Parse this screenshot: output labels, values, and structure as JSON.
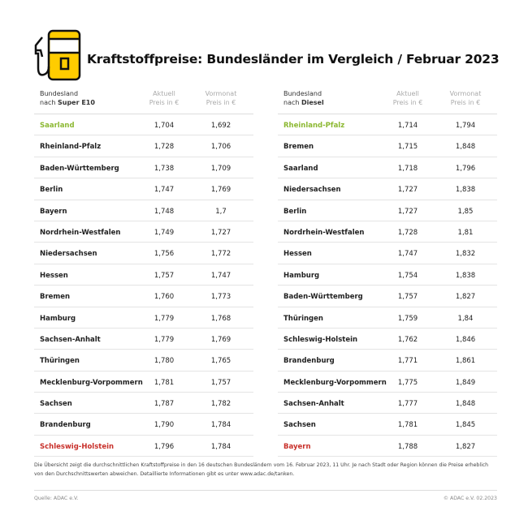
{
  "title": "Kraftstoffpreise: Bundesländer im Vergleich / Februar 2023",
  "logo_icon": "fuel-pump-icon",
  "colors": {
    "accent": "#ffcc00",
    "best": "#8cb832",
    "worst": "#c8302a"
  },
  "tables": [
    {
      "header": {
        "name_line1": "Bundesland",
        "name_prefix": "nach ",
        "fuel": "Super E10",
        "current_line1": "Aktuell",
        "current_line2": "Preis in €",
        "prev_line1": "Vormonat",
        "prev_line2": "Preis in €"
      },
      "rows": [
        {
          "state": "Saarland",
          "current": "1,704",
          "previous": "1,692",
          "highlight": "best"
        },
        {
          "state": "Rheinland-Pfalz",
          "current": "1,728",
          "previous": "1,706"
        },
        {
          "state": "Baden-Württemberg",
          "current": "1,738",
          "previous": "1,709"
        },
        {
          "state": "Berlin",
          "current": "1,747",
          "previous": "1,769"
        },
        {
          "state": "Bayern",
          "current": "1,748",
          "previous": "1,7"
        },
        {
          "state": "Nordrhein-Westfalen",
          "current": "1,749",
          "previous": "1,727"
        },
        {
          "state": "Niedersachsen",
          "current": "1,756",
          "previous": "1,772"
        },
        {
          "state": "Hessen",
          "current": "1,757",
          "previous": "1,747"
        },
        {
          "state": "Bremen",
          "current": "1,760",
          "previous": "1,773"
        },
        {
          "state": "Hamburg",
          "current": "1,779",
          "previous": "1,768"
        },
        {
          "state": "Sachsen-Anhalt",
          "current": "1,779",
          "previous": "1,769"
        },
        {
          "state": "Thüringen",
          "current": "1,780",
          "previous": "1,765"
        },
        {
          "state": "Mecklenburg-Vorpommern",
          "current": "1,781",
          "previous": "1,757"
        },
        {
          "state": "Sachsen",
          "current": "1,787",
          "previous": "1,782"
        },
        {
          "state": "Brandenburg",
          "current": "1,790",
          "previous": "1,784"
        },
        {
          "state": "Schleswig-Holstein",
          "current": "1,796",
          "previous": "1,784",
          "highlight": "worst"
        }
      ]
    },
    {
      "header": {
        "name_line1": "Bundesland",
        "name_prefix": "nach ",
        "fuel": "Diesel",
        "current_line1": "Aktuell",
        "current_line2": "Preis in €",
        "prev_line1": "Vormonat",
        "prev_line2": "Preis in €"
      },
      "rows": [
        {
          "state": "Rheinland-Pfalz",
          "current": "1,714",
          "previous": "1,794",
          "highlight": "best"
        },
        {
          "state": "Bremen",
          "current": "1,715",
          "previous": "1,848"
        },
        {
          "state": "Saarland",
          "current": "1,718",
          "previous": "1,796"
        },
        {
          "state": "Niedersachsen",
          "current": "1,727",
          "previous": "1,838"
        },
        {
          "state": "Berlin",
          "current": "1,727",
          "previous": "1,85"
        },
        {
          "state": "Nordrhein-Westfalen",
          "current": "1,728",
          "previous": "1,81"
        },
        {
          "state": "Hessen",
          "current": "1,747",
          "previous": "1,832"
        },
        {
          "state": "Hamburg",
          "current": "1,754",
          "previous": "1,838"
        },
        {
          "state": "Baden-Württemberg",
          "current": "1,757",
          "previous": "1,827"
        },
        {
          "state": "Thüringen",
          "current": "1,759",
          "previous": "1,84"
        },
        {
          "state": "Schleswig-Holstein",
          "current": "1,762",
          "previous": "1,846"
        },
        {
          "state": "Brandenburg",
          "current": "1,771",
          "previous": "1,861"
        },
        {
          "state": "Mecklenburg-Vorpommern",
          "current": "1,775",
          "previous": "1,849"
        },
        {
          "state": "Sachsen-Anhalt",
          "current": "1,777",
          "previous": "1,848"
        },
        {
          "state": "Sachsen",
          "current": "1,781",
          "previous": "1,845"
        },
        {
          "state": "Bayern",
          "current": "1,788",
          "previous": "1,827",
          "highlight": "worst"
        }
      ]
    }
  ],
  "note": "Die Übersicht zeigt die durchschnittlichen Kraftstoffpreise in den 16 deutschen Bundesländern vom 16. Februar 2023, 11 Uhr. Je nach Stadt oder Region können die Preise erheblich von den Durchschnittswerten abweichen. Detaillierte Informationen gibt es unter www.adac.de/tanken.",
  "footer": {
    "source": "Quelle: ADAC e.V.",
    "copyright": "© ADAC e.V. 02.2023"
  }
}
